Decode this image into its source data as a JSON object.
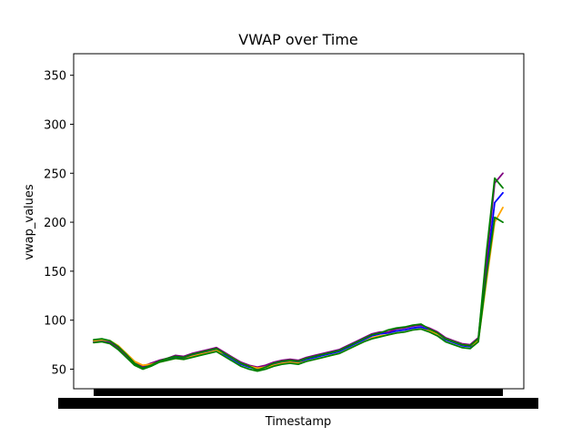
{
  "chart_data": {
    "type": "line",
    "title": "VWAP over Time",
    "xlabel": "Timestamp",
    "ylabel": "vwap_values",
    "ylim": [
      30,
      372
    ],
    "yticks": [
      50,
      100,
      150,
      200,
      250,
      300,
      350
    ],
    "grid": false,
    "x": [
      0,
      2,
      4,
      6,
      8,
      10,
      12,
      14,
      16,
      18,
      20,
      22,
      24,
      26,
      28,
      30,
      32,
      34,
      36,
      38,
      40,
      42,
      44,
      46,
      48,
      50,
      52,
      54,
      56,
      58,
      60,
      62,
      64,
      66,
      68,
      70,
      72,
      74,
      76,
      78,
      80,
      82,
      84,
      86,
      88,
      90,
      92,
      94,
      96,
      98,
      100
    ],
    "series": [
      {
        "color": "#0000ff",
        "values": [
          78,
          79,
          77,
          71,
          63,
          55,
          52,
          55,
          58,
          60,
          62,
          61,
          64,
          66,
          68,
          70,
          65,
          60,
          55,
          52,
          50,
          52,
          55,
          57,
          58,
          57,
          60,
          62,
          64,
          66,
          68,
          72,
          76,
          80,
          84,
          86,
          87,
          89,
          90,
          92,
          93,
          90,
          86,
          80,
          77,
          74,
          73,
          80,
          150,
          220,
          230
        ]
      },
      {
        "color": "#800080",
        "values": [
          79,
          80,
          78,
          72,
          64,
          56,
          53,
          56,
          59,
          61,
          64,
          63,
          66,
          68,
          70,
          72,
          67,
          62,
          57,
          54,
          52,
          54,
          57,
          59,
          60,
          59,
          62,
          64,
          66,
          68,
          70,
          74,
          78,
          82,
          86,
          88,
          88,
          91,
          92,
          94,
          95,
          92,
          88,
          82,
          79,
          76,
          75,
          82,
          160,
          240,
          250
        ]
      },
      {
        "color": "#ffa500",
        "values": [
          79,
          80,
          79,
          74,
          66,
          58,
          54,
          55,
          57,
          59,
          61,
          60,
          63,
          65,
          67,
          69,
          66,
          61,
          56,
          53,
          51,
          52,
          54,
          56,
          57,
          56,
          58,
          60,
          62,
          64,
          66,
          70,
          74,
          78,
          82,
          84,
          85,
          87,
          88,
          90,
          91,
          89,
          86,
          81,
          78,
          75,
          74,
          79,
          140,
          200,
          215
        ]
      },
      {
        "color": "#008000",
        "values": [
          80,
          81,
          79,
          73,
          65,
          56,
          51,
          54,
          58,
          61,
          63,
          62,
          65,
          67,
          69,
          71,
          66,
          61,
          56,
          53,
          49,
          52,
          56,
          58,
          59,
          58,
          61,
          63,
          65,
          67,
          69,
          73,
          77,
          81,
          85,
          87,
          90,
          92,
          93,
          95,
          96,
          91,
          87,
          81,
          78,
          75,
          74,
          81,
          170,
          245,
          235
        ]
      },
      {
        "color": "#008000",
        "values": [
          77,
          78,
          76,
          70,
          62,
          54,
          50,
          53,
          57,
          59,
          61,
          60,
          62,
          64,
          66,
          68,
          63,
          58,
          53,
          50,
          48,
          50,
          53,
          55,
          56,
          55,
          58,
          60,
          62,
          64,
          66,
          70,
          74,
          78,
          81,
          83,
          85,
          87,
          88,
          90,
          91,
          88,
          84,
          78,
          75,
          72,
          71,
          78,
          145,
          205,
          200
        ]
      }
    ]
  }
}
